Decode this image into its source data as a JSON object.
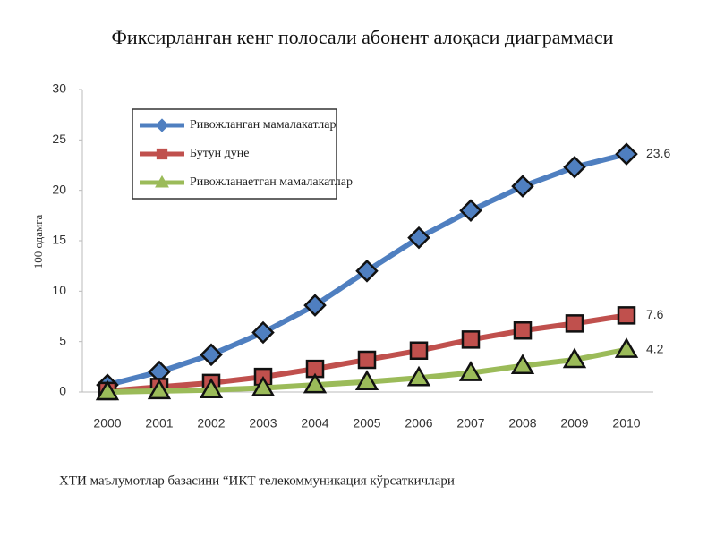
{
  "chart_data": {
    "type": "line",
    "title": "Фиксирланган кенг полосали абонент алоқаси диаграммаси",
    "y_label": "100 одамга",
    "source": "ХТИ маълумотлар базасини “ИКТ телекоммуникация кўрсаткичлари",
    "categories": [
      "2000",
      "2001",
      "2002",
      "2003",
      "2004",
      "2005",
      "2006",
      "2007",
      "2008",
      "2009",
      "2010"
    ],
    "series": [
      {
        "name": "Ривожланган мамалакатлар",
        "color": "#4f7fc0",
        "marker": "diamond",
        "values": [
          0.7,
          2.0,
          3.7,
          5.9,
          8.6,
          12.0,
          15.3,
          18.0,
          20.4,
          22.3,
          23.6
        ]
      },
      {
        "name": "Бутун дуне",
        "color": "#c0504d",
        "marker": "square",
        "values": [
          0.1,
          0.5,
          0.9,
          1.5,
          2.3,
          3.2,
          4.1,
          5.2,
          6.1,
          6.8,
          7.6
        ]
      },
      {
        "name": "Ривожланаетган мамалакатлар",
        "color": "#9bbb59",
        "marker": "triangle",
        "values": [
          0.0,
          0.1,
          0.2,
          0.4,
          0.7,
          1.0,
          1.4,
          1.9,
          2.6,
          3.2,
          4.2
        ]
      }
    ],
    "ylim": [
      0,
      30
    ],
    "yticks": [
      0,
      5,
      10,
      15,
      20,
      25,
      30
    ],
    "grid": false
  }
}
